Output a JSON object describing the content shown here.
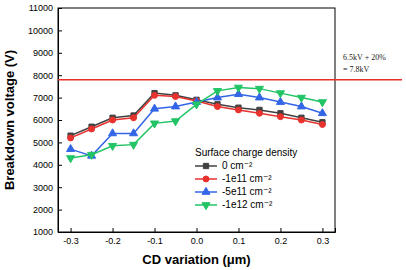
{
  "chart_data": {
    "type": "line",
    "x_label": "CD variation (μm)",
    "y_label": "Breakdown voltage (V)",
    "x": [
      -0.3,
      -0.25,
      -0.2,
      -0.15,
      -0.1,
      -0.05,
      0,
      0.05,
      0.1,
      0.15,
      0.2,
      0.25,
      0.3
    ],
    "xlim": [
      -0.33,
      0.33
    ],
    "xticks": [
      -0.3,
      -0.2,
      -0.1,
      {
        "value": 0,
        "label": "0.0"
      },
      0.1,
      0.2,
      0.3
    ],
    "ylim": [
      1000,
      11000
    ],
    "yticks": [
      1000,
      2000,
      3000,
      4000,
      5000,
      6000,
      7000,
      8000,
      9000,
      10000,
      11000
    ],
    "legend": "lower right",
    "legend_title": "Surface charge density",
    "series": [
      {
        "name": "0 cm⁻²",
        "color": "#404040",
        "marker": "square",
        "values": [
          5300,
          5700,
          6100,
          6200,
          7200,
          7100,
          6900,
          6700,
          6550,
          6450,
          6300,
          6100,
          5900
        ]
      },
      {
        "name": "-1e11 cm⁻²",
        "color": "#e8322e",
        "marker": "circle",
        "values": [
          5200,
          5600,
          6000,
          6100,
          7100,
          7050,
          6850,
          6600,
          6450,
          6300,
          6150,
          6000,
          5800
        ]
      },
      {
        "name": "-5e11 cm⁻²",
        "color": "#3366e6",
        "marker": "triangle-up",
        "values": [
          4700,
          4400,
          5400,
          5400,
          6500,
          6600,
          6800,
          7000,
          7150,
          7000,
          6800,
          6600,
          6300
        ]
      },
      {
        "name": "-1e12 cm⁻²",
        "color": "#22c466",
        "marker": "triangle-down",
        "values": [
          4300,
          4450,
          4850,
          4900,
          5850,
          5950,
          6700,
          7300,
          7450,
          7400,
          7200,
          7000,
          6800
        ]
      }
    ],
    "annotations": [
      {
        "y": 7800,
        "texts": [
          "6.5kV + 20%",
          "= 7.8kV"
        ],
        "color": "#e8302a"
      }
    ]
  }
}
